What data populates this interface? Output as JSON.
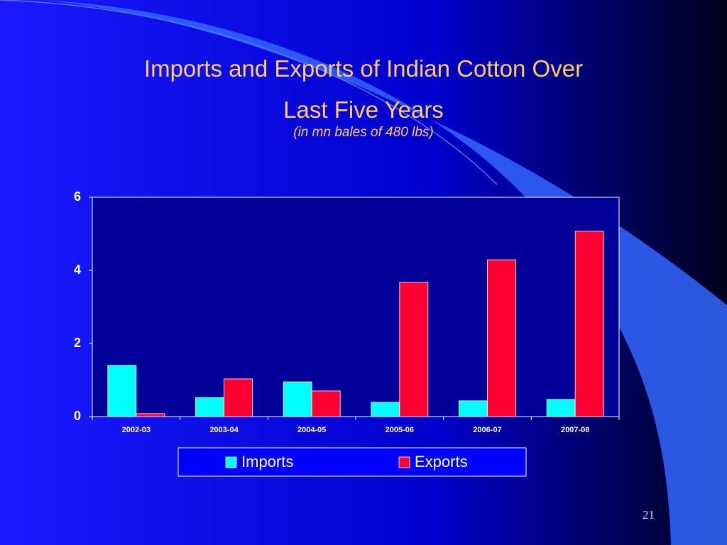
{
  "chart_data": {
    "type": "bar",
    "title": "Imports and Exports of Indian Cotton Over Last Five Years",
    "subtitle": "(in mn bales of 480 lbs)",
    "categories": [
      "2002-03",
      "2003-04",
      "2004-05",
      "2005-06",
      "2006-07",
      "2007-08"
    ],
    "series": [
      {
        "name": "Imports",
        "color": "#00ffff",
        "values": [
          1.4,
          0.52,
          0.95,
          0.39,
          0.43,
          0.47
        ]
      },
      {
        "name": "Exports",
        "color": "#ff0033",
        "values": [
          0.08,
          1.03,
          0.7,
          3.67,
          4.29,
          5.07
        ]
      }
    ],
    "ylim": [
      0,
      6
    ],
    "yticks": [
      0,
      2,
      4,
      6
    ],
    "grid": false,
    "legend": "bottom"
  },
  "slide": {
    "page_number": "21"
  }
}
